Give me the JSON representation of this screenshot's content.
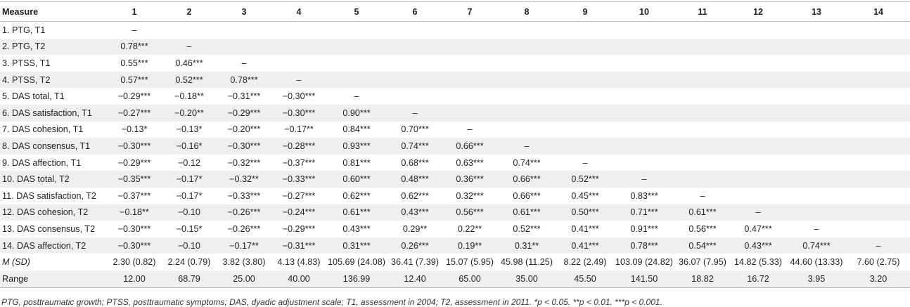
{
  "headers": [
    "Measure",
    "1",
    "2",
    "3",
    "4",
    "5",
    "6",
    "7",
    "8",
    "9",
    "10",
    "11",
    "12",
    "13",
    "14"
  ],
  "rows": [
    [
      "1. PTG, T1",
      "–",
      "",
      "",
      "",
      "",
      "",
      "",
      "",
      "",
      "",
      "",
      "",
      "",
      ""
    ],
    [
      "2. PTG, T2",
      "0.78***",
      "–",
      "",
      "",
      "",
      "",
      "",
      "",
      "",
      "",
      "",
      "",
      "",
      ""
    ],
    [
      "3. PTSS, T1",
      "0.55***",
      "0.46***",
      "–",
      "",
      "",
      "",
      "",
      "",
      "",
      "",
      "",
      "",
      "",
      ""
    ],
    [
      "4. PTSS, T2",
      "0.57***",
      "0.52***",
      "0.78***",
      "–",
      "",
      "",
      "",
      "",
      "",
      "",
      "",
      "",
      "",
      ""
    ],
    [
      "5. DAS total, T1",
      "−0.29***",
      "−0.18**",
      "−0.31***",
      "−0.30***",
      "–",
      "",
      "",
      "",
      "",
      "",
      "",
      "",
      "",
      ""
    ],
    [
      "6. DAS satisfaction, T1",
      "−0.27***",
      "−0.20**",
      "−0.29***",
      "−0.30***",
      "0.90***",
      "–",
      "",
      "",
      "",
      "",
      "",
      "",
      "",
      ""
    ],
    [
      "7. DAS cohesion, T1",
      "−0.13*",
      "−0.13*",
      "−0.20***",
      "−0.17**",
      "0.84***",
      "0.70***",
      "–",
      "",
      "",
      "",
      "",
      "",
      "",
      ""
    ],
    [
      "8. DAS consensus, T1",
      "−0.30***",
      "−0.16*",
      "−0.30***",
      "−0.28***",
      "0.93***",
      "0.74***",
      "0.66***",
      "–",
      "",
      "",
      "",
      "",
      "",
      ""
    ],
    [
      "9. DAS affection, T1",
      "−0.29***",
      "−0.12",
      "−0.32***",
      "−0.37***",
      "0.81***",
      "0.68***",
      "0.63***",
      "0.74***",
      "–",
      "",
      "",
      "",
      "",
      ""
    ],
    [
      "10. DAS total, T2",
      "−0.35***",
      "−0.17*",
      "−0.32**",
      "−0.33***",
      "0.60***",
      "0.48***",
      "0.36***",
      "0.66***",
      "0.52***",
      "–",
      "",
      "",
      "",
      ""
    ],
    [
      "11. DAS satisfaction, T2",
      "−0.37***",
      "−0.17*",
      "−0.33***",
      "−0.27***",
      "0.62***",
      "0.62***",
      "0.32***",
      "0.66***",
      "0.45***",
      "0.83***",
      "–",
      "",
      "",
      ""
    ],
    [
      "12. DAS cohesion, T2",
      "−0.18**",
      "−0.10",
      "−0.26***",
      "−0.24***",
      "0.61***",
      "0.43***",
      "0.56***",
      "0.61***",
      "0.50***",
      "0.71***",
      "0.61***",
      "–",
      "",
      ""
    ],
    [
      "13. DAS consensus, T2",
      "−0.30***",
      "−0.15*",
      "−0.26***",
      "−0.29***",
      "0.43***",
      "0.29**",
      "0.22**",
      "0.52***",
      "0.41***",
      "0.91***",
      "0.56***",
      "0.47***",
      "–",
      ""
    ],
    [
      "14. DAS affection, T2",
      "−0.30***",
      "−0.10",
      "−0.17**",
      "−0.31***",
      "0.31***",
      "0.26***",
      "0.19**",
      "0.31**",
      "0.41***",
      "0.78***",
      "0.54***",
      "0.43***",
      "0.74***",
      "–"
    ],
    [
      "M (SD)",
      "2.30 (0.82)",
      "2.24 (0.79)",
      "3.82 (3.80)",
      "4.13 (4.83)",
      "105.69 (24.08)",
      "36.41 (7.39)",
      "15.07 (5.95)",
      "45.98 (11.25)",
      "8.22 (2.49)",
      "103.09 (24.82)",
      "36.07 (7.95)",
      "14.82 (5.33)",
      "44.60 (13.33)",
      "7.60 (2.75)"
    ],
    [
      "Range",
      "12.00",
      "68.79",
      "25.00",
      "40.00",
      "136.99",
      "12.40",
      "65.00",
      "35.00",
      "45.50",
      "141.50",
      "18.82",
      "16.72",
      "3.95",
      "3.20"
    ]
  ],
  "footnote": "PTG, posttraumatic growth; PTSS, posttraumatic symptoms; DAS, dyadic adjustment scale; T1, assessment in 2004; T2, assessment in 2011. *p < 0.05. **p < 0.01. ***p < 0.001.",
  "colors": {
    "row_shade": "#efefef",
    "rule": "#bfbfbf",
    "text": "#222222"
  }
}
